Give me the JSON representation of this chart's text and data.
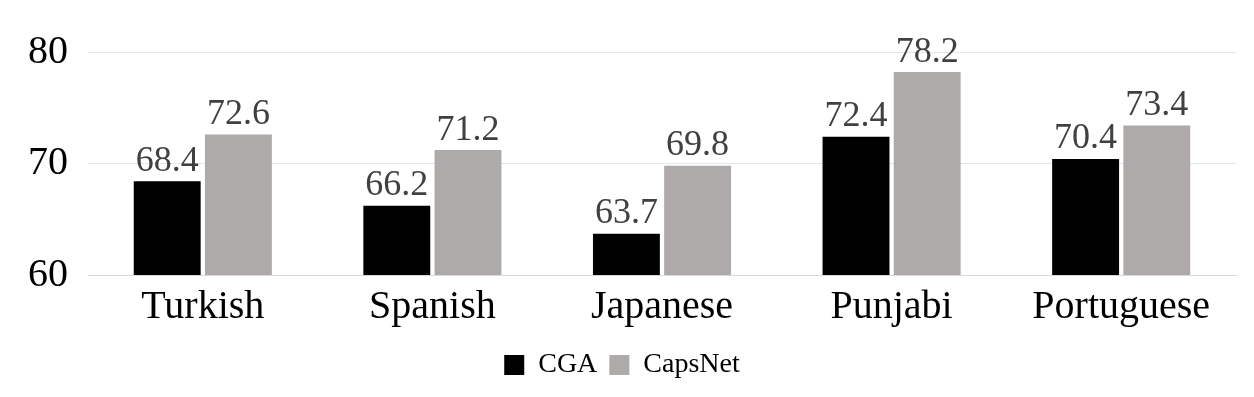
{
  "chart_data": {
    "type": "bar",
    "categories": [
      "Turkish",
      "Spanish",
      "Japanese",
      "Punjabi",
      "Portuguese"
    ],
    "series": [
      {
        "name": "CGA",
        "color": "#000000",
        "values": [
          68.4,
          66.2,
          63.7,
          72.4,
          70.4
        ]
      },
      {
        "name": "CapsNet",
        "color": "#aeaaaa",
        "values": [
          72.6,
          71.2,
          69.8,
          78.2,
          73.4
        ]
      }
    ],
    "ylim": [
      60,
      80
    ],
    "yticks": [
      60,
      70,
      80
    ],
    "grid": "y",
    "legend": "bottom",
    "data_labels": true
  }
}
